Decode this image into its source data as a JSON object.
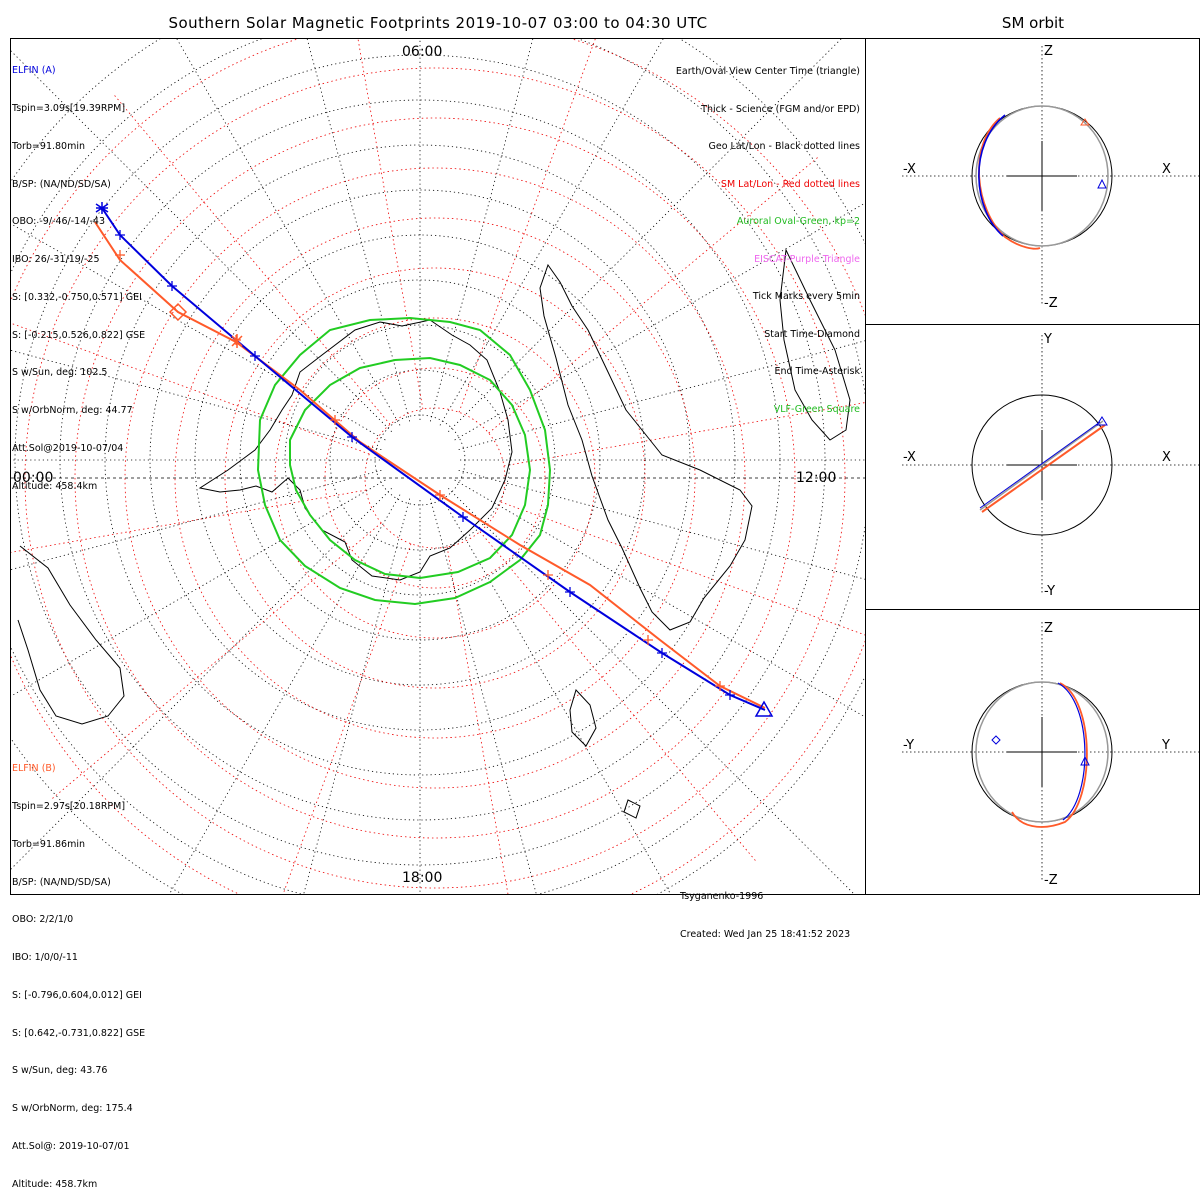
{
  "title": "Southern Solar Magnetic Footprints 2019-10-07 03:00 to 04:30 UTC",
  "right_title": "SM orbit",
  "clock_labels": {
    "top": "06:00",
    "left": "00:00",
    "right": "12:00",
    "bottom": "18:00"
  },
  "elfin_a": {
    "name": "ELFIN (A)",
    "lines": [
      "Tspin=3.09s[19.39RPM]",
      "Torb=91.80min",
      "B/SP: (NA/ND/SD/SA)",
      "OBO: -9/-46/-14/-43",
      "IBO: 26/-31/19/-25",
      "S: [0.332,-0.750,0.571] GEI",
      "S: [-0.215,0.526,0.822] GSE",
      "S w/Sun, deg: 102.5",
      "S w/OrbNorm, deg: 44.77",
      "Att.Sol@2019-10-07/04",
      "Altitude: 458.4km"
    ],
    "color": "#0000dd"
  },
  "elfin_b": {
    "name": "ELFIN (B)",
    "lines": [
      "Tspin=2.97s[20.18RPM]",
      "Torb=91.86min",
      "B/SP: (NA/ND/SD/SA)",
      "OBO: 2/2/1/0",
      "IBO: 1/0/0/-11",
      "S: [-0.796,0.604,0.012] GEI",
      "S: [0.642,-0.731,0.822] GSE",
      "S w/Sun, deg: 43.76",
      "S w/OrbNorm, deg: 175.4",
      "Att.Sol@: 2019-10-07/01",
      "Altitude: 458.7km"
    ],
    "color": "#ff5a2a"
  },
  "legend": [
    {
      "text": "Earth/Oval View Center Time (triangle)",
      "color": "#000000"
    },
    {
      "text": "Thick - Science (FGM and/or EPD)",
      "color": "#000000"
    },
    {
      "text": "Geo Lat/Lon - Black dotted lines",
      "color": "#000000"
    },
    {
      "text": "SM Lat/Lon - Red dotted lines",
      "color": "#ee0000"
    },
    {
      "text": "Auroral Oval-Green, kp=2",
      "color": "#22bb22"
    },
    {
      "text": "EISCAT-Purple Triangle",
      "color": "#ee66ee"
    },
    {
      "text": "Tick Marks every 5min",
      "color": "#000000"
    },
    {
      "text": "Start Time-Diamond",
      "color": "#000000"
    },
    {
      "text": "End Time-Asterisk",
      "color": "#000000"
    },
    {
      "text": "VLF-Green Square",
      "color": "#22bb22"
    }
  ],
  "footer": [
    "Tsyganenko-1996",
    "Created: Wed Jan 25 18:41:52 2023"
  ],
  "panels": [
    {
      "top": "Z",
      "bottom": "-Z",
      "left": "-X",
      "right": "X"
    },
    {
      "top": "Y",
      "bottom": "-Y",
      "left": "-X",
      "right": "X"
    },
    {
      "top": "Z",
      "bottom": "-Z",
      "left": "-Y",
      "right": "Y"
    }
  ],
  "colors": {
    "oval": "#22cc22",
    "sm_grid": "#ee0000",
    "orbit_gray": "#999999"
  }
}
